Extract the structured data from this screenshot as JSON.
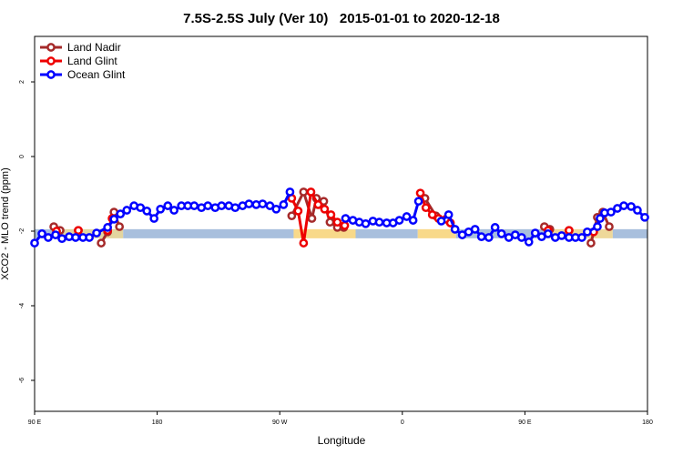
{
  "chart_data": {
    "type": "line",
    "title": "7.5S-2.5S July (Ver 10)   2015-01-01 to 2020-12-18",
    "x_label": "Longitude",
    "y_label": "XCO2 - MLO trend (ppm)",
    "xlim": [
      90,
      540
    ],
    "ylim": [
      -6.83,
      3.22
    ],
    "xticks": [
      {
        "value": 90,
        "label": "90 E"
      },
      {
        "value": 180,
        "label": "180"
      },
      {
        "value": 270,
        "label": "90 W"
      },
      {
        "value": 360,
        "label": "0"
      },
      {
        "value": 450,
        "label": "90 E"
      },
      {
        "value": 540,
        "label": "180"
      }
    ],
    "yticks": [
      2,
      0,
      -2,
      -4,
      -6
    ],
    "legend": "top-left",
    "band_y": -2.07,
    "surface_bands": [
      {
        "x": [
          90,
          104.7
        ],
        "color": "#a8bfdd"
      },
      {
        "x": [
          104.7,
          155
        ],
        "color": "#e3d59f"
      },
      {
        "x": [
          155,
          280.2
        ],
        "color": "#a8bfdd"
      },
      {
        "x": [
          280.2,
          325.7
        ],
        "color": "#f8d98a"
      },
      {
        "x": [
          325.7,
          371.3
        ],
        "color": "#a8bfdd"
      },
      {
        "x": [
          371.3,
          399.4
        ],
        "color": "#f8d98a"
      },
      {
        "x": [
          399.4,
          466.3
        ],
        "color": "#a8bfdd"
      },
      {
        "x": [
          466.3,
          514.5
        ],
        "color": "#eed89a"
      },
      {
        "x": [
          514.5,
          540
        ],
        "color": "#a8bfdd"
      }
    ],
    "series": [
      {
        "name": "Land Nadir",
        "color": "#a52a2a",
        "x": [
          104.1,
          108.7,
          null,
          122.1,
          null,
          138.9,
          143.6,
          148.3,
          152.3,
          null,
          278.8,
          287.5,
          293.6,
          296.9,
          302.3,
          306.9,
          312.3,
          317.0,
          null,
          376.6,
          384.6,
          null,
          464.3,
          468.3,
          null,
          482.4,
          null,
          498.5,
          503.2,
          507.2,
          511.9
        ],
        "values": [
          -1.88,
          -1.98,
          null,
          -1.98,
          null,
          -2.32,
          -2.02,
          -1.49,
          -1.88,
          null,
          -1.59,
          -0.95,
          -1.66,
          -1.12,
          -1.2,
          -1.76,
          -1.9,
          -1.9,
          null,
          -1.12,
          -1.59,
          null,
          -1.88,
          -1.95,
          null,
          -1.98,
          null,
          -2.32,
          -1.63,
          -1.49,
          -1.88
        ]
      },
      {
        "name": "Land Glint",
        "color": "#ee0000",
        "x": [
          106.1,
          null,
          122.1,
          null,
          143.6,
          146.9,
          null,
          278.8,
          283.5,
          287.5,
          292.9,
          298.2,
          302.9,
          307.6,
          312.3,
          317.7,
          null,
          373.2,
          377.3,
          382.0,
          386.6,
          392.0,
          395.3,
          null,
          467.0,
          null,
          482.4,
          null,
          500.5
        ],
        "values": [
          -2.0,
          null,
          -1.98,
          null,
          -1.98,
          -1.66,
          null,
          -1.12,
          -1.46,
          -2.32,
          -0.95,
          -1.29,
          -1.41,
          -1.56,
          -1.76,
          -1.85,
          null,
          -0.98,
          -1.37,
          -1.56,
          -1.66,
          -1.68,
          -1.78,
          null,
          -1.98,
          null,
          -1.98,
          null,
          -2.02
        ]
      },
      {
        "name": "Ocean Glint",
        "color": "#0000ff",
        "x": [
          90,
          95.4,
          100.0,
          105.4,
          110.1,
          115.4,
          120.1,
          125.5,
          130.2,
          135.5,
          143.6,
          148.3,
          153.0,
          157.7,
          163.0,
          167.7,
          172.4,
          177.7,
          182.4,
          187.8,
          192.4,
          197.8,
          202.5,
          207.2,
          212.5,
          217.2,
          222.6,
          227.3,
          232.6,
          237.3,
          242.7,
          247.4,
          252.7,
          257.4,
          262.8,
          267.4,
          272.8,
          277.5,
          null,
          318.3,
          323.7,
          328.4,
          333.1,
          338.4,
          343.1,
          348.5,
          353.2,
          357.8,
          363.2,
          367.9,
          371.9,
          null,
          388.6,
          394.0,
          398.7,
          404.0,
          408.7,
          413.4,
          418.1,
          423.5,
          428.1,
          432.8,
          438.2,
          442.9,
          447.6,
          452.9,
          457.6,
          462.3,
          467.0,
          472.3,
          477.0,
          482.4,
          487.1,
          491.8,
          495.8,
          503.2,
          505.2,
          508.5,
          513.2,
          517.9,
          522.6,
          528.0,
          532.6,
          538.0
        ],
        "values": [
          -2.32,
          -2.07,
          -2.17,
          -2.1,
          -2.2,
          -2.15,
          -2.17,
          -2.17,
          -2.17,
          -2.05,
          -1.9,
          -1.68,
          -1.54,
          -1.44,
          -1.32,
          -1.37,
          -1.46,
          -1.66,
          -1.41,
          -1.32,
          -1.44,
          -1.32,
          -1.32,
          -1.32,
          -1.37,
          -1.32,
          -1.37,
          -1.32,
          -1.32,
          -1.37,
          -1.32,
          -1.27,
          -1.29,
          -1.27,
          -1.32,
          -1.41,
          -1.29,
          -0.95,
          null,
          -1.66,
          -1.71,
          -1.76,
          -1.8,
          -1.73,
          -1.76,
          -1.78,
          -1.78,
          -1.71,
          -1.61,
          -1.71,
          -1.2,
          null,
          -1.73,
          -1.56,
          -1.95,
          -2.1,
          -2.02,
          -1.95,
          -2.15,
          -2.17,
          -1.9,
          -2.07,
          -2.17,
          -2.1,
          -2.17,
          -2.29,
          -2.05,
          -2.15,
          -2.07,
          -2.17,
          -2.12,
          -2.17,
          -2.17,
          -2.17,
          -2.02,
          -1.88,
          -1.66,
          -1.51,
          -1.49,
          -1.39,
          -1.32,
          -1.34,
          -1.44,
          -1.63
        ]
      }
    ]
  }
}
